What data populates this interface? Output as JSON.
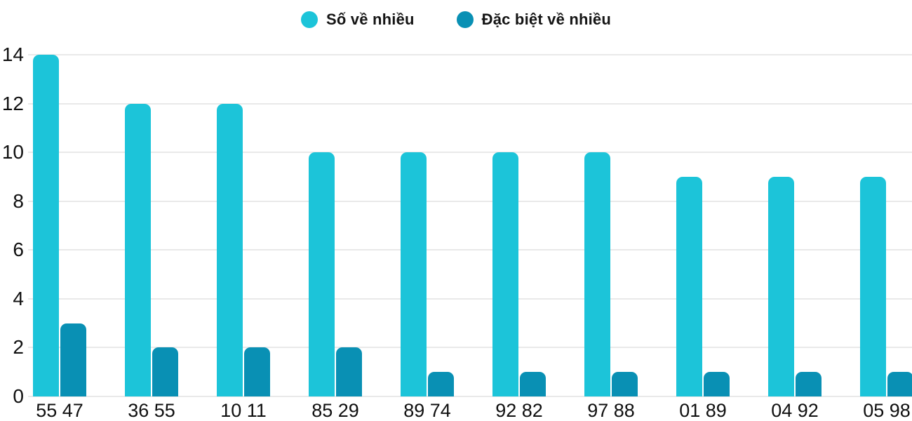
{
  "legend": {
    "items": [
      {
        "label": "Số về nhiều",
        "color": "#1cc4d9"
      },
      {
        "label": "Đặc biệt về nhiều",
        "color": "#0990b4"
      }
    ]
  },
  "chart_data": {
    "type": "bar",
    "title": "",
    "categories": [
      "55 47",
      "36 55",
      "10 11",
      "85 29",
      "89 74",
      "92 82",
      "97 88",
      "01 89",
      "04 92",
      "05 98"
    ],
    "series": [
      {
        "name": "Số về nhiều",
        "color": "#1cc4d9",
        "values": [
          14,
          12,
          12,
          10,
          10,
          10,
          10,
          9,
          9,
          9
        ]
      },
      {
        "name": "Đặc biệt về nhiều",
        "color": "#0990b4",
        "values": [
          3,
          2,
          2,
          2,
          1,
          1,
          1,
          1,
          1,
          1
        ]
      }
    ],
    "xlabel": "",
    "ylabel": "",
    "ylim": [
      0,
      14
    ],
    "yticks": [
      0,
      2,
      4,
      6,
      8,
      10,
      12,
      14
    ],
    "grid": true,
    "legend_position": "top-center",
    "colors": {
      "grid": "#e9e9e9",
      "text": "#101010",
      "background": "#ffffff"
    }
  }
}
